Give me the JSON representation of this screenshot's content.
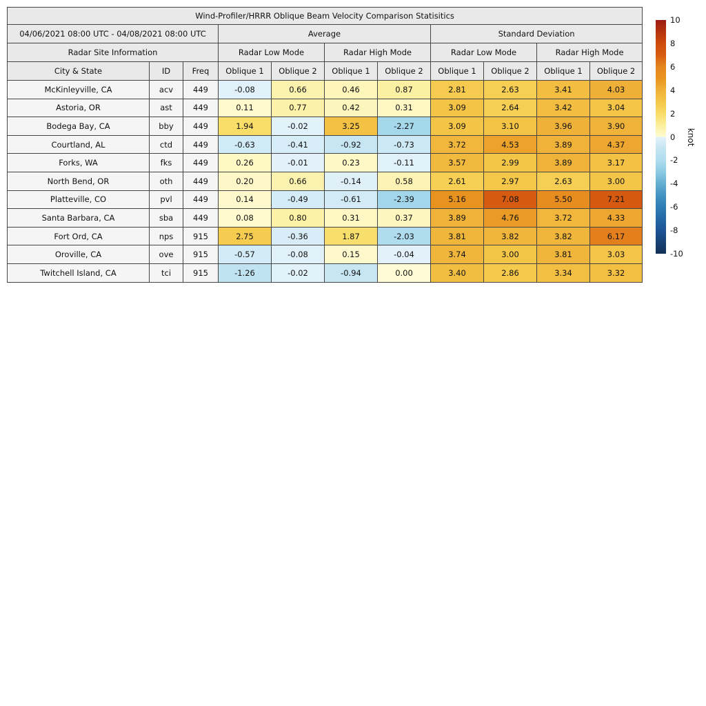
{
  "chart_data": {
    "type": "heatmap",
    "title": "Wind-Profiler/HRRR Oblique Beam Velocity Comparison Statisitics",
    "date_range": "04/06/2021 08:00 UTC - 04/08/2021 08:00 UTC",
    "site_info_header": "Radar Site Information",
    "groups": [
      "Average",
      "Standard Deviation"
    ],
    "mode_headers": [
      "Radar Low Mode",
      "Radar High Mode",
      "Radar Low Mode",
      "Radar High Mode"
    ],
    "columns": [
      "City & State",
      "ID",
      "Freq",
      "Oblique 1",
      "Oblique 2",
      "Oblique 1",
      "Oblique 2",
      "Oblique 1",
      "Oblique 2",
      "Oblique 1",
      "Oblique 2"
    ],
    "value_format": "0.00",
    "rows": [
      {
        "city": "McKinleyville, CA",
        "id": "acv",
        "freq": 449,
        "values": [
          -0.08,
          0.66,
          0.46,
          0.87,
          2.81,
          2.63,
          3.41,
          4.03
        ]
      },
      {
        "city": "Astoria, OR",
        "id": "ast",
        "freq": 449,
        "values": [
          0.11,
          0.77,
          0.42,
          0.31,
          3.09,
          2.64,
          3.42,
          3.04
        ]
      },
      {
        "city": "Bodega Bay, CA",
        "id": "bby",
        "freq": 449,
        "values": [
          1.94,
          -0.02,
          3.25,
          -2.27,
          3.09,
          3.1,
          3.96,
          3.9
        ]
      },
      {
        "city": "Courtland, AL",
        "id": "ctd",
        "freq": 449,
        "values": [
          -0.63,
          -0.41,
          -0.92,
          -0.73,
          3.72,
          4.53,
          3.89,
          4.37
        ]
      },
      {
        "city": "Forks, WA",
        "id": "fks",
        "freq": 449,
        "values": [
          0.26,
          -0.01,
          0.23,
          -0.11,
          3.57,
          2.99,
          3.89,
          3.17
        ]
      },
      {
        "city": "North Bend, OR",
        "id": "oth",
        "freq": 449,
        "values": [
          0.2,
          0.66,
          -0.14,
          0.58,
          2.61,
          2.97,
          2.63,
          3.0
        ]
      },
      {
        "city": "Platteville, CO",
        "id": "pvl",
        "freq": 449,
        "values": [
          0.14,
          -0.49,
          -0.61,
          -2.39,
          5.16,
          7.08,
          5.5,
          7.21
        ]
      },
      {
        "city": "Santa Barbara, CA",
        "id": "sba",
        "freq": 449,
        "values": [
          0.08,
          0.8,
          0.31,
          0.37,
          3.89,
          4.76,
          3.72,
          4.33
        ]
      },
      {
        "city": "Fort Ord, CA",
        "id": "nps",
        "freq": 915,
        "values": [
          2.75,
          -0.36,
          1.87,
          -2.03,
          3.81,
          3.82,
          3.82,
          6.17
        ]
      },
      {
        "city": "Oroville, CA",
        "id": "ove",
        "freq": 915,
        "values": [
          -0.57,
          -0.08,
          0.15,
          -0.04,
          3.74,
          3.0,
          3.81,
          3.03
        ]
      },
      {
        "city": "Twitchell Island, CA",
        "id": "tci",
        "freq": 915,
        "values": [
          -1.26,
          -0.02,
          -0.94,
          0.0,
          3.4,
          2.86,
          3.34,
          3.32
        ]
      }
    ],
    "colorbar": {
      "label": "knot",
      "min": -10,
      "max": 10,
      "ticks": [
        10,
        8,
        6,
        4,
        2,
        0,
        -2,
        -4,
        -6,
        -8,
        -10
      ],
      "warm_anchors": [
        "#FFFBD4",
        "#FBEE9C",
        "#F8DC66",
        "#F4C648",
        "#EFB138",
        "#E9941F",
        "#E5861E",
        "#D75D10",
        "#CE4A0B",
        "#B5330F",
        "#9B1C12"
      ],
      "cool_anchors": [
        "#E3F2FA",
        "#C5E5F3",
        "#B0DDEF",
        "#8BCAE2",
        "#64AFD3",
        "#4292C3",
        "#2E7EB5",
        "#2468A8",
        "#1D5496",
        "#174275",
        "#123156"
      ]
    },
    "style_colors": {
      "header_bg": "#E9E9E9",
      "label_cell_bg": "#F5F5F5",
      "border": "#444444"
    }
  }
}
